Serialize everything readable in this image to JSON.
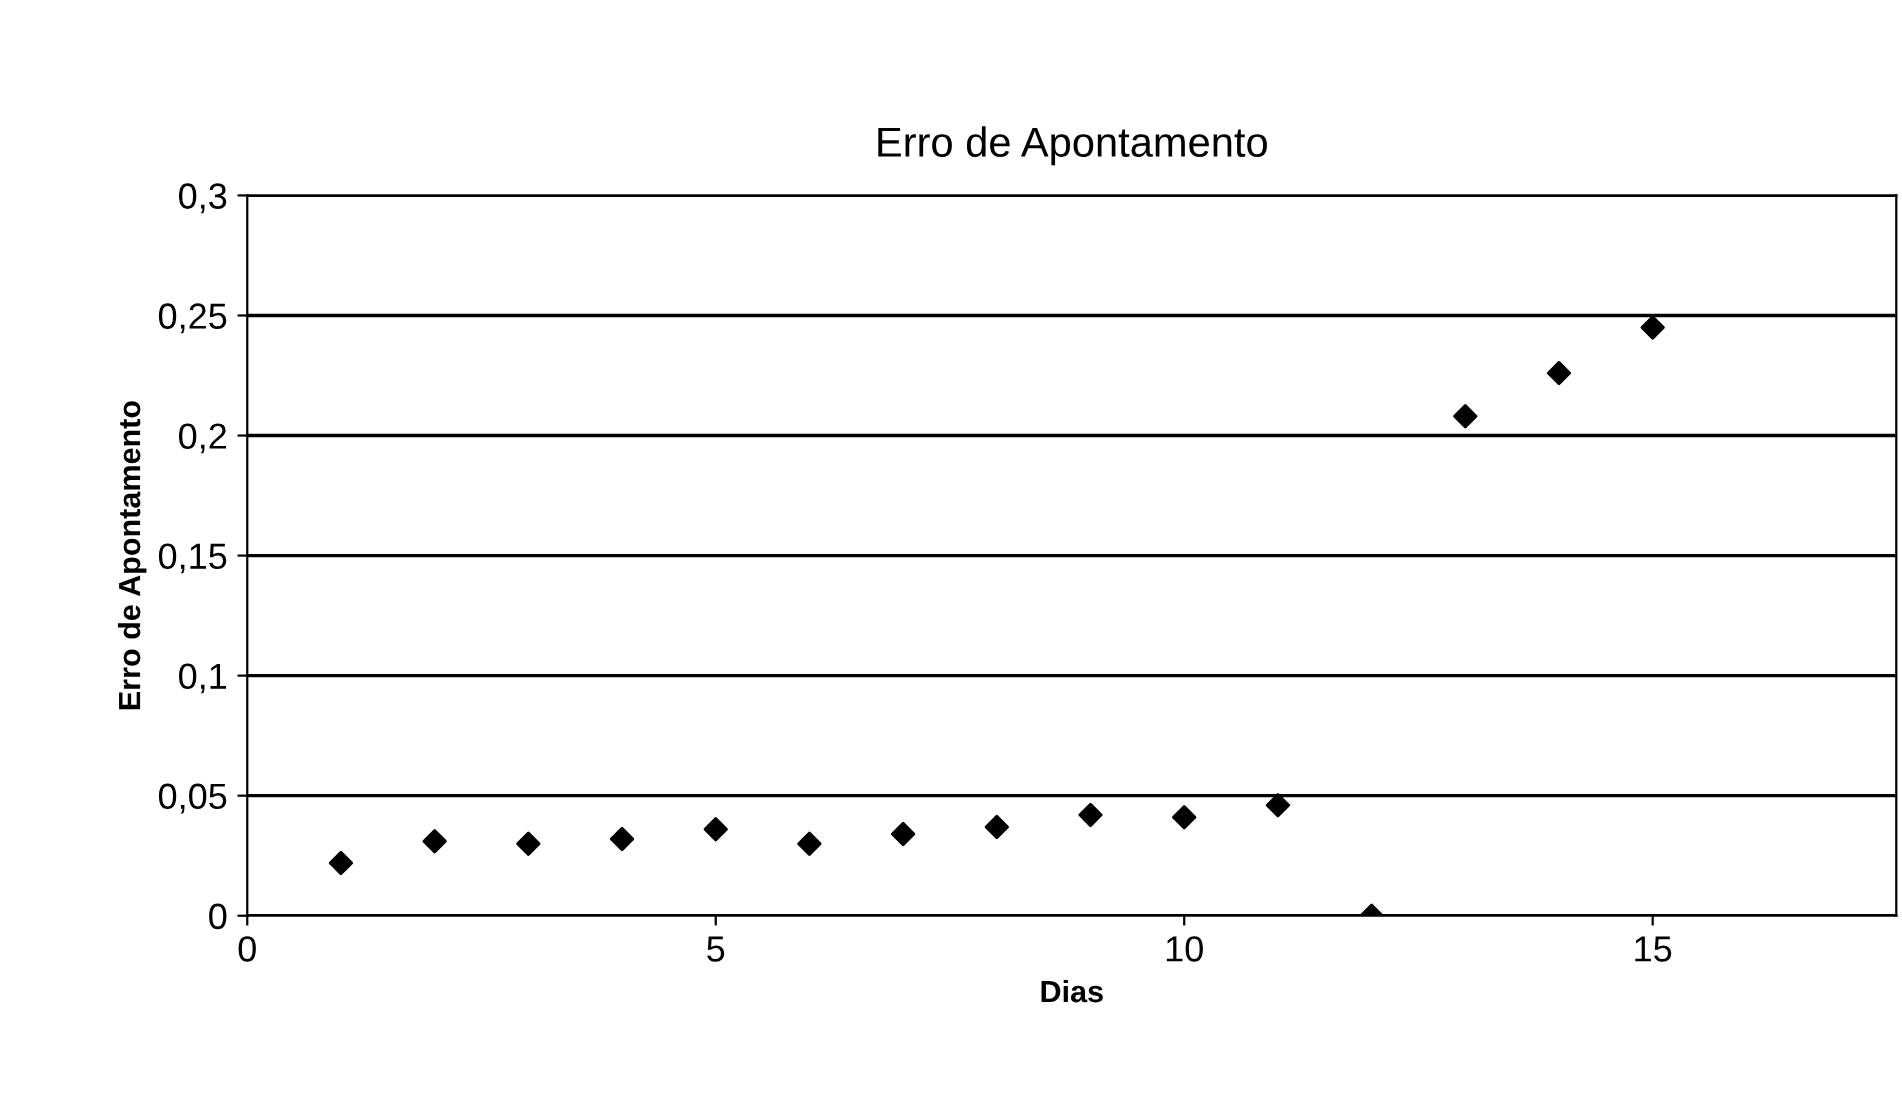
{
  "chart_data": {
    "type": "scatter",
    "title": "Erro de Apontamento",
    "xlabel": "Dias",
    "ylabel": "Erro de Apontamento",
    "x": [
      1,
      2,
      3,
      4,
      5,
      6,
      7,
      8,
      9,
      10,
      11,
      12,
      13,
      14,
      15
    ],
    "series": [
      {
        "color": "#000000",
        "values": [
          0.022,
          0.031,
          0.03,
          0.032,
          0.036,
          0.03,
          0.034,
          0.037,
          0.042,
          0.041,
          0.046,
          0,
          0.208,
          0.226,
          0.245
        ]
      }
    ],
    "xlim": [
      0,
      17.6
    ],
    "xticks": [
      0,
      5,
      10,
      15
    ],
    "ylim": [
      0,
      0.3
    ],
    "yticks": [
      {
        "value": 0,
        "label": "0"
      },
      {
        "value": 0.05,
        "label": "0,05"
      },
      {
        "value": 0.1,
        "label": "0,1"
      },
      {
        "value": 0.15,
        "label": "0,15"
      },
      {
        "value": 0.2,
        "label": "0,2"
      },
      {
        "value": 0.25,
        "label": "0,25"
      },
      {
        "value": 0.3,
        "label": "0,3"
      }
    ],
    "grid": "y",
    "marker": "diamond",
    "legend": false
  }
}
